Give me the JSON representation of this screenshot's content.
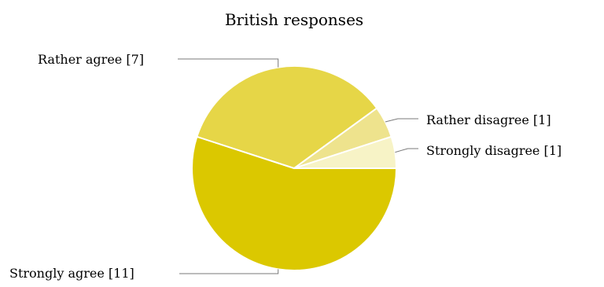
{
  "chart_data": {
    "type": "pie",
    "title": "British responses",
    "slices": [
      {
        "label": "Strongly agree [11]",
        "category": "Strongly agree",
        "value": 11,
        "color": "#dbc800"
      },
      {
        "label": "Rather agree [7]",
        "category": "Rather agree",
        "value": 7,
        "color": "#e6d647"
      },
      {
        "label": "Rather disagree [1]",
        "category": "Rather disagree",
        "value": 1,
        "color": "#eee38d"
      },
      {
        "label": "Strongly disagree [1]",
        "category": "Strongly disagree",
        "value": 1,
        "color": "#f7f3c6"
      }
    ]
  }
}
